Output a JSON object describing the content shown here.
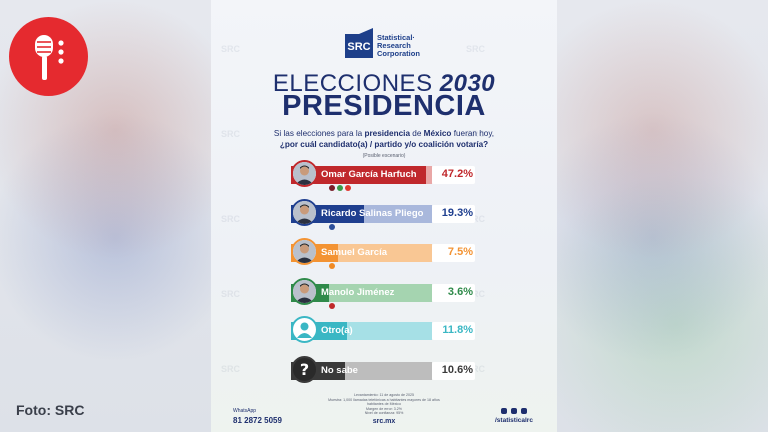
{
  "credit": "Foto: SRC",
  "brand": {
    "box": "SRC",
    "name_lines": [
      "Statistical·",
      "Research",
      "Corporation"
    ]
  },
  "title": {
    "line1_a": "ELECCIONES",
    "line1_b": "2030",
    "line2": "PRESIDENCIA"
  },
  "question": {
    "part1": "Si las elecciones para la",
    "bold1": "presidencia",
    "part2": "de",
    "bold2": "México",
    "part3": "fueran hoy,",
    "line2": "¿por cuál candidato(a) / partido y/o coalición votaría?"
  },
  "note": "(Posible escenario)",
  "chart_data": {
    "type": "bar",
    "orientation": "horizontal",
    "categories": [
      "Omar García Harfuch",
      "Ricardo Salinas Pliego",
      "Samuel García",
      "Manolo Jiménez",
      "Otro(a)",
      "No sabe"
    ],
    "values": [
      47.2,
      19.3,
      7.5,
      3.6,
      11.8,
      10.6
    ],
    "value_labels": [
      "47.2%",
      "19.3%",
      "7.5%",
      "3.6%",
      "11.8%",
      "10.6%"
    ],
    "colors": [
      "#c0282c",
      "#1f3f8f",
      "#f39333",
      "#2f8a4a",
      "#3ab7c4",
      "#3a3a3a"
    ],
    "bar_light_colors": [
      "#e9a7a6",
      "#a9b8dc",
      "#f9c794",
      "#a5d4b0",
      "#a6e0e6",
      "#bdbdbd"
    ],
    "unit": "%"
  },
  "footer": {
    "whatsapp_label": "WhatsApp",
    "phone": "81 2872 5059",
    "url": "src.mx",
    "handle": "/statisticalrc",
    "meta_lines": [
      "Levantamiento: 11 de agosto de 2025",
      "Muestra: 1,000 llamadas telefónicas a habitantes mayores de 18 años habitantes de México",
      "Margen de error: 3.2%",
      "Nivel de confianza: 95%"
    ]
  },
  "watermark": "SRC"
}
